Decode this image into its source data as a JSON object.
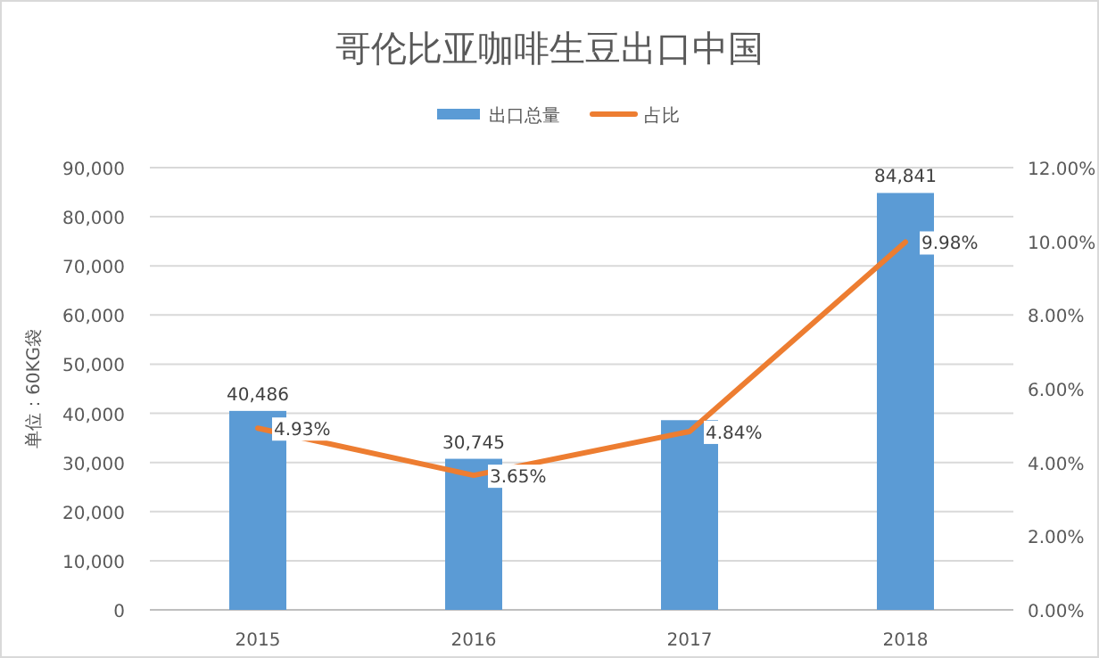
{
  "chart_data": {
    "type": "bar",
    "title": "哥伦比亚咖啡生豆出口中国",
    "ylabel": "单位：60KG袋",
    "categories": [
      "2015",
      "2016",
      "2017",
      "2018"
    ],
    "series": [
      {
        "name": "出口总量",
        "color": "#5b9bd5",
        "values": [
          40486,
          30745,
          38600,
          84841
        ],
        "value_labels": [
          "40,486",
          "30,745",
          null,
          "84,841"
        ]
      },
      {
        "name": "占比",
        "type": "line",
        "axis": "y2",
        "color": "#ed7d31",
        "values": [
          4.93,
          3.65,
          4.84,
          9.98
        ],
        "value_labels": [
          "4.93%",
          "3.65%",
          "4.84%",
          "9.98%"
        ]
      }
    ],
    "ylim": [
      0,
      90000
    ],
    "yticks": [
      {
        "value": 0,
        "label": "0"
      },
      {
        "value": 10000,
        "label": "10,000"
      },
      {
        "value": 20000,
        "label": "20,000"
      },
      {
        "value": 30000,
        "label": "30,000"
      },
      {
        "value": 40000,
        "label": "40,000"
      },
      {
        "value": 50000,
        "label": "50,000"
      },
      {
        "value": 60000,
        "label": "60,000"
      },
      {
        "value": 70000,
        "label": "70,000"
      },
      {
        "value": 80000,
        "label": "80,000"
      },
      {
        "value": 90000,
        "label": "90,000"
      }
    ],
    "y2lim": [
      0,
      12
    ],
    "y2ticks": [
      {
        "value": 0,
        "label": "0.00%"
      },
      {
        "value": 2,
        "label": "2.00%"
      },
      {
        "value": 4,
        "label": "4.00%"
      },
      {
        "value": 6,
        "label": "6.00%"
      },
      {
        "value": 8,
        "label": "8.00%"
      },
      {
        "value": 10,
        "label": "10.00%"
      },
      {
        "value": 12,
        "label": "12.00%"
      }
    ],
    "grid": "y",
    "legend": "top"
  }
}
